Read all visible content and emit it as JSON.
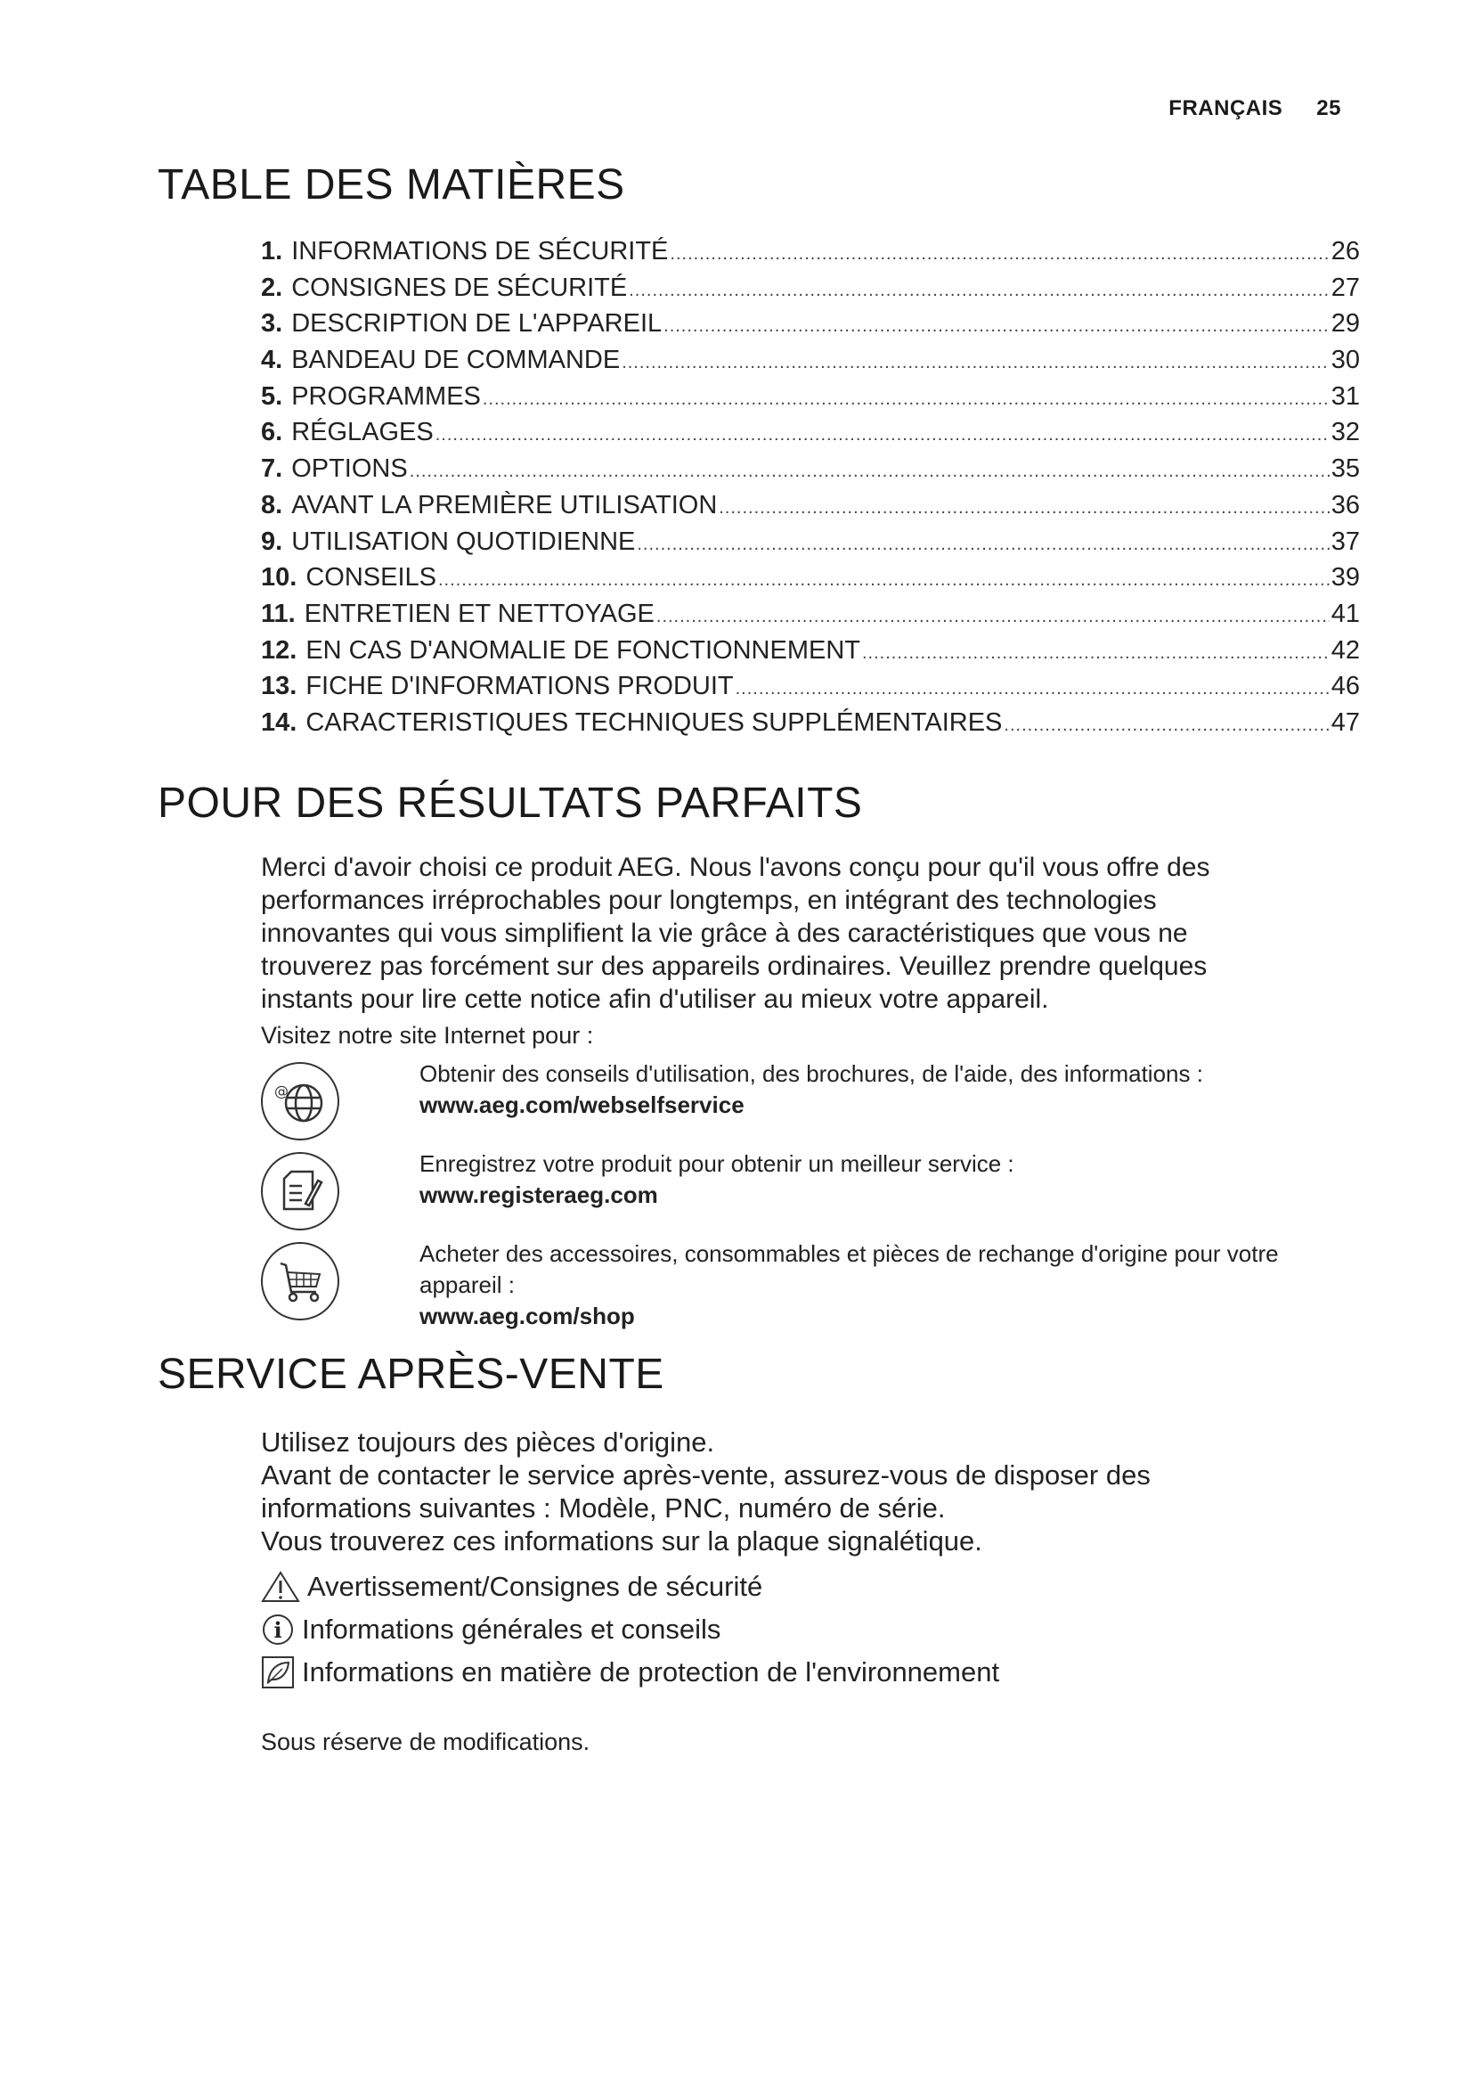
{
  "header": {
    "language": "FRANÇAIS",
    "page_number": "25"
  },
  "toc": {
    "title": "TABLE DES MATIÈRES",
    "items": [
      {
        "num": "1.",
        "label": "INFORMATIONS DE SÉCURITÉ",
        "page": "26"
      },
      {
        "num": "2.",
        "label": "CONSIGNES DE SÉCURITÉ",
        "page": "27"
      },
      {
        "num": "3.",
        "label": "DESCRIPTION DE L'APPAREIL",
        "page": "29"
      },
      {
        "num": "4.",
        "label": "BANDEAU DE COMMANDE",
        "page": "30"
      },
      {
        "num": "5.",
        "label": "PROGRAMMES",
        "page": "31"
      },
      {
        "num": "6.",
        "label": "RÉGLAGES",
        "page": "32"
      },
      {
        "num": "7.",
        "label": "OPTIONS",
        "page": "35"
      },
      {
        "num": "8.",
        "label": "AVANT LA PREMIÈRE UTILISATION",
        "page": "36"
      },
      {
        "num": "9.",
        "label": "UTILISATION QUOTIDIENNE",
        "page": "37"
      },
      {
        "num": "10.",
        "label": "CONSEILS",
        "page": "39"
      },
      {
        "num": "11.",
        "label": "ENTRETIEN ET NETTOYAGE",
        "page": "41"
      },
      {
        "num": "12.",
        "label": "EN CAS D'ANOMALIE DE FONCTIONNEMENT",
        "page": "42"
      },
      {
        "num": "13.",
        "label": "FICHE D'INFORMATIONS PRODUIT",
        "page": "46"
      },
      {
        "num": "14.",
        "label": "CARACTERISTIQUES TECHNIQUES SUPPLÉMENTAIRES",
        "page": "47"
      }
    ]
  },
  "results": {
    "title": "POUR DES RÉSULTATS PARFAITS",
    "lines": [
      "Merci d'avoir choisi ce produit AEG. Nous l'avons conçu pour qu'il vous offre des",
      "performances irréprochables pour longtemps, en intégrant des technologies",
      "innovantes qui vous simplifient la vie grâce à des caractéristiques que vous ne",
      "trouverez pas forcément sur des appareils ordinaires. Veuillez prendre quelques",
      "instants pour lire cette notice afin d'utiliser au mieux votre appareil."
    ],
    "visit": "Visitez notre site Internet pour :",
    "links": [
      {
        "icon": "globe-at-icon",
        "text": "Obtenir des conseils d'utilisation, des brochures, de l'aide, des informations :",
        "url": "www.aeg.com/webselfservice"
      },
      {
        "icon": "register-document-icon",
        "text": "Enregistrez votre produit pour obtenir un meilleur service :",
        "url": "www.registeraeg.com"
      },
      {
        "icon": "shopping-cart-icon",
        "text": "Acheter des accessoires, consommables et pièces de rechange d'origine pour votre appareil :",
        "url": "www.aeg.com/shop"
      }
    ]
  },
  "service": {
    "title": "SERVICE APRÈS-VENTE",
    "lines": [
      "Utilisez toujours des pièces d'origine.",
      "Avant de contacter le service après-vente, assurez-vous de disposer des",
      "informations suivantes : Modèle, PNC, numéro de série.",
      "Vous trouverez ces informations sur la plaque signalétique."
    ],
    "symbols": [
      {
        "icon": "warning-triangle-icon",
        "label": "Avertissement/Consignes de sécurité"
      },
      {
        "icon": "info-circle-icon",
        "label": "Informations générales et conseils"
      },
      {
        "icon": "leaf-environment-icon",
        "label": "Informations en matière de protection de l'environnement"
      }
    ],
    "footer": "Sous réserve de modifications."
  }
}
